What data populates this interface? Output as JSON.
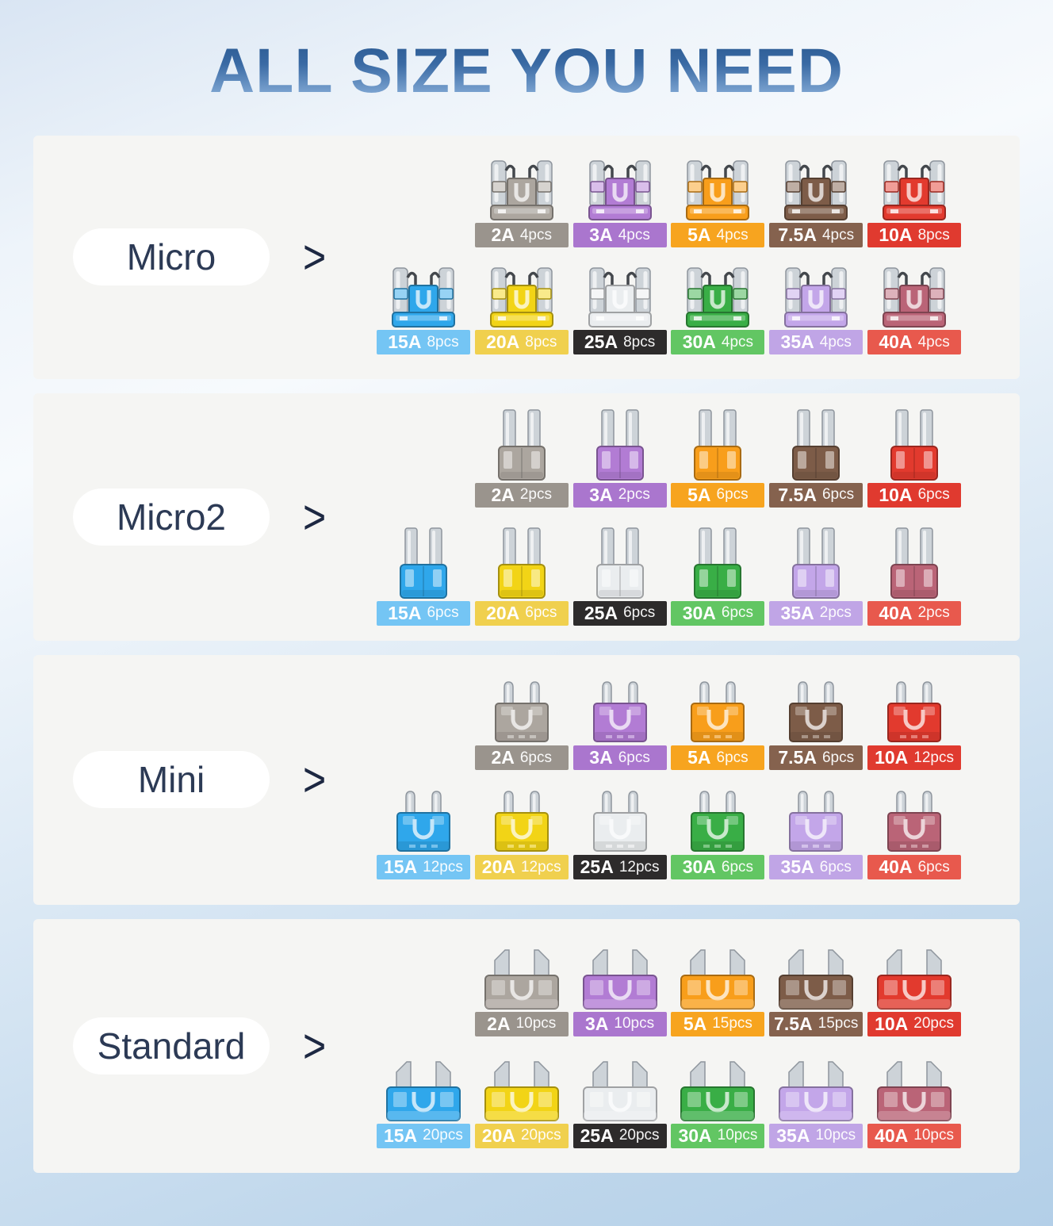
{
  "page": {
    "title": "ALL SIZE YOU NEED",
    "arrow_glyph": ">"
  },
  "colors": {
    "2A": {
      "chip": "#9a948d",
      "fuse": "#aca69f"
    },
    "3A": {
      "chip": "#aa76ce",
      "fuse": "#b27cd4"
    },
    "5A": {
      "chip": "#f7a41f",
      "fuse": "#f89e1b"
    },
    "7.5A": {
      "chip": "#85624e",
      "fuse": "#7d5c48"
    },
    "10A": {
      "chip": "#e03a2f",
      "fuse": "#e23a2e"
    },
    "15A": {
      "chip": "#74c5f4",
      "fuse": "#2fa7eb"
    },
    "20A": {
      "chip": "#f0d04e",
      "fuse": "#f2d416"
    },
    "25A": {
      "chip": "#2d2b2b",
      "fuse": "#eaedef"
    },
    "30A": {
      "chip": "#62c663",
      "fuse": "#39ae46"
    },
    "35A": {
      "chip": "#c0a5e6",
      "fuse": "#c3a6e9"
    },
    "40A": {
      "chip": "#e8594d",
      "fuse": "#ba6477"
    }
  },
  "sections": [
    {
      "label": "Micro",
      "type": "micro",
      "rows": [
        [
          {
            "amp": "2A",
            "count": "4pcs"
          },
          {
            "amp": "3A",
            "count": "4pcs"
          },
          {
            "amp": "5A",
            "count": "4pcs"
          },
          {
            "amp": "7.5A",
            "count": "4pcs"
          },
          {
            "amp": "10A",
            "count": "8pcs"
          }
        ],
        [
          {
            "amp": "15A",
            "count": "8pcs"
          },
          {
            "amp": "20A",
            "count": "8pcs"
          },
          {
            "amp": "25A",
            "count": "8pcs"
          },
          {
            "amp": "30A",
            "count": "4pcs"
          },
          {
            "amp": "35A",
            "count": "4pcs"
          },
          {
            "amp": "40A",
            "count": "4pcs"
          }
        ]
      ]
    },
    {
      "label": "Micro2",
      "type": "micro2",
      "rows": [
        [
          {
            "amp": "2A",
            "count": "2pcs"
          },
          {
            "amp": "3A",
            "count": "2pcs"
          },
          {
            "amp": "5A",
            "count": "6pcs"
          },
          {
            "amp": "7.5A",
            "count": "6pcs"
          },
          {
            "amp": "10A",
            "count": "6pcs"
          }
        ],
        [
          {
            "amp": "15A",
            "count": "6pcs"
          },
          {
            "amp": "20A",
            "count": "6pcs"
          },
          {
            "amp": "25A",
            "count": "6pcs"
          },
          {
            "amp": "30A",
            "count": "6pcs"
          },
          {
            "amp": "35A",
            "count": "2pcs"
          },
          {
            "amp": "40A",
            "count": "2pcs"
          }
        ]
      ]
    },
    {
      "label": "Mini",
      "type": "mini",
      "rows": [
        [
          {
            "amp": "2A",
            "count": "6pcs"
          },
          {
            "amp": "3A",
            "count": "6pcs"
          },
          {
            "amp": "5A",
            "count": "6pcs"
          },
          {
            "amp": "7.5A",
            "count": "6pcs"
          },
          {
            "amp": "10A",
            "count": "12pcs"
          }
        ],
        [
          {
            "amp": "15A",
            "count": "12pcs"
          },
          {
            "amp": "20A",
            "count": "12pcs"
          },
          {
            "amp": "25A",
            "count": "12pcs"
          },
          {
            "amp": "30A",
            "count": "6pcs"
          },
          {
            "amp": "35A",
            "count": "6pcs"
          },
          {
            "amp": "40A",
            "count": "6pcs"
          }
        ]
      ]
    },
    {
      "label": "Standard",
      "type": "standard",
      "rows": [
        [
          {
            "amp": "2A",
            "count": "10pcs"
          },
          {
            "amp": "3A",
            "count": "10pcs"
          },
          {
            "amp": "5A",
            "count": "15pcs"
          },
          {
            "amp": "7.5A",
            "count": "15pcs"
          },
          {
            "amp": "10A",
            "count": "20pcs"
          }
        ],
        [
          {
            "amp": "15A",
            "count": "20pcs"
          },
          {
            "amp": "20A",
            "count": "20pcs"
          },
          {
            "amp": "25A",
            "count": "20pcs"
          },
          {
            "amp": "30A",
            "count": "10pcs"
          },
          {
            "amp": "35A",
            "count": "10pcs"
          },
          {
            "amp": "40A",
            "count": "10pcs"
          }
        ]
      ]
    }
  ]
}
